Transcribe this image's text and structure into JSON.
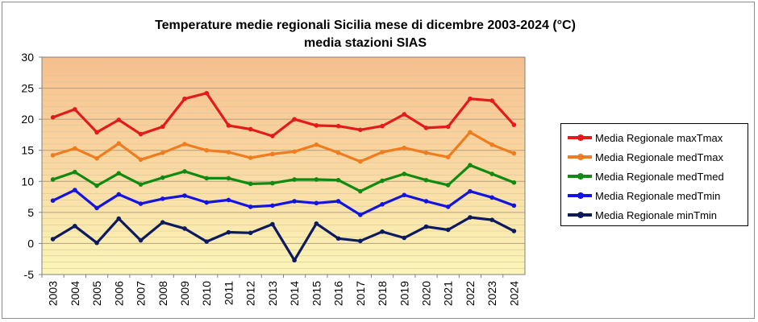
{
  "chart_data": {
    "type": "line",
    "title": "Temperature medie regionali Sicilia mese di dicembre 2003-2024 (°C)",
    "subtitle": "media stazioni SIAS",
    "xlabel": "",
    "ylabel": "",
    "ylim": [
      -5,
      30
    ],
    "yticks": [
      -5,
      0,
      5,
      10,
      15,
      20,
      25,
      30
    ],
    "grid": true,
    "legend": "right",
    "categories": [
      "2003",
      "2004",
      "2005",
      "2006",
      "2007",
      "2008",
      "2009",
      "2010",
      "2011",
      "2012",
      "2013",
      "2014",
      "2015",
      "2016",
      "2017",
      "2018",
      "2019",
      "2020",
      "2021",
      "2022",
      "2023",
      "2024"
    ],
    "series": [
      {
        "name": "Media Regionale maxTmax",
        "color": "#e41a1a",
        "values": [
          20.3,
          21.6,
          17.9,
          19.9,
          17.6,
          18.8,
          23.3,
          24.2,
          19.0,
          18.4,
          17.3,
          20.0,
          19.0,
          18.9,
          18.3,
          18.9,
          20.8,
          18.6,
          18.8,
          23.3,
          23.0,
          19.1
        ]
      },
      {
        "name": "Media Regionale medTmax",
        "color": "#f07c20",
        "values": [
          14.2,
          15.3,
          13.7,
          16.1,
          13.5,
          14.6,
          16.0,
          15.0,
          14.7,
          13.8,
          14.4,
          14.8,
          15.9,
          14.6,
          13.2,
          14.7,
          15.4,
          14.6,
          13.9,
          17.9,
          15.9,
          14.5
        ]
      },
      {
        "name": "Media Regionale medTmed",
        "color": "#108a10",
        "values": [
          10.3,
          11.5,
          9.3,
          11.3,
          9.5,
          10.6,
          11.6,
          10.5,
          10.5,
          9.6,
          9.7,
          10.3,
          10.3,
          10.2,
          8.4,
          10.1,
          11.2,
          10.2,
          9.4,
          12.6,
          11.2,
          9.8
        ]
      },
      {
        "name": "Media Regionale medTmin",
        "color": "#1414e0",
        "values": [
          6.9,
          8.6,
          5.7,
          7.9,
          6.4,
          7.2,
          7.7,
          6.6,
          7.0,
          5.9,
          6.1,
          6.8,
          6.5,
          6.8,
          4.6,
          6.3,
          7.8,
          6.8,
          5.9,
          8.4,
          7.4,
          6.1
        ]
      },
      {
        "name": "Media Regionale minTmin",
        "color": "#0d1a60",
        "values": [
          0.7,
          2.8,
          0.1,
          4.0,
          0.5,
          3.4,
          2.4,
          0.3,
          1.8,
          1.7,
          3.1,
          -2.7,
          3.2,
          0.8,
          0.4,
          1.9,
          0.9,
          2.7,
          2.2,
          4.2,
          3.8,
          2.0
        ]
      }
    ]
  }
}
